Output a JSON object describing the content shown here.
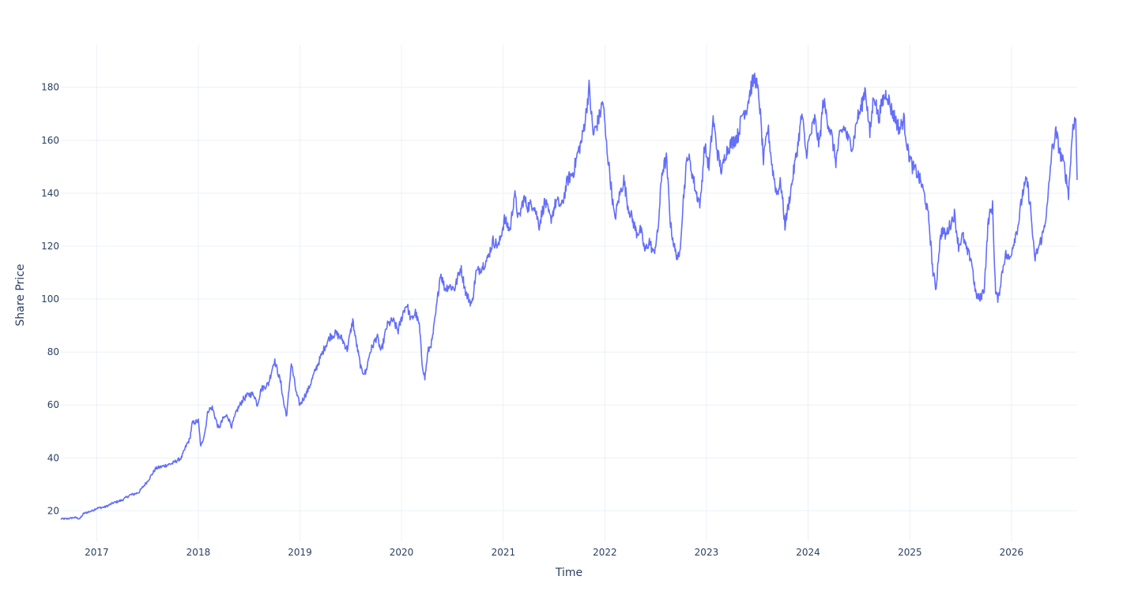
{
  "chart_data": {
    "type": "line",
    "title": "",
    "xlabel": "Time",
    "ylabel": "Share Price",
    "x_tick_labels": [
      "2017",
      "2018",
      "2019",
      "2020",
      "2021",
      "2022",
      "2023",
      "2024",
      "2025",
      "2026"
    ],
    "y_ticks": [
      20,
      40,
      60,
      80,
      100,
      120,
      140,
      160,
      180
    ],
    "xlim": [
      "2016-08-25",
      "2026-08-25"
    ],
    "ylim": [
      8.5,
      196
    ],
    "grid": true,
    "legend": false,
    "line_color": "#636efa",
    "series": [
      {
        "x": [
          "2016-08-25",
          "2016-09-15",
          "2016-10-15",
          "2016-11-01",
          "2016-11-15",
          "2016-12-15",
          "2017-01-01",
          "2017-02-01",
          "2017-03-01",
          "2017-04-01",
          "2017-05-01",
          "2017-05-20",
          "2017-06-01",
          "2017-07-01",
          "2017-08-01",
          "2017-09-01",
          "2017-10-01",
          "2017-11-01",
          "2017-11-20",
          "2017-12-01",
          "2017-12-10",
          "2018-01-01",
          "2018-01-10",
          "2018-01-25",
          "2018-02-05",
          "2018-02-20",
          "2018-03-15",
          "2018-04-01",
          "2018-04-15",
          "2018-05-01",
          "2018-05-20",
          "2018-06-10",
          "2018-07-01",
          "2018-07-20",
          "2018-08-01",
          "2018-08-15",
          "2018-09-10",
          "2018-10-01",
          "2018-10-15",
          "2018-10-25",
          "2018-11-05",
          "2018-11-15",
          "2018-12-01",
          "2018-12-20",
          "2019-01-01",
          "2019-02-01",
          "2019-03-01",
          "2019-04-01",
          "2019-04-20",
          "2019-05-10",
          "2019-06-01",
          "2019-06-20",
          "2019-07-10",
          "2019-07-20",
          "2019-08-10",
          "2019-08-25",
          "2019-09-10",
          "2019-10-05",
          "2019-10-20",
          "2019-11-10",
          "2019-12-01",
          "2019-12-20",
          "2020-01-10",
          "2020-01-20",
          "2020-02-05",
          "2020-02-20",
          "2020-03-05",
          "2020-03-15",
          "2020-03-25",
          "2020-04-05",
          "2020-04-20",
          "2020-05-05",
          "2020-05-20",
          "2020-06-05",
          "2020-06-20",
          "2020-07-10",
          "2020-08-01",
          "2020-08-20",
          "2020-09-10",
          "2020-09-25",
          "2020-10-15",
          "2020-11-05",
          "2020-11-25",
          "2020-12-15",
          "2021-01-05",
          "2021-01-25",
          "2021-02-10",
          "2021-02-25",
          "2021-03-15",
          "2021-03-30",
          "2021-04-20",
          "2021-05-10",
          "2021-05-30",
          "2021-06-20",
          "2021-07-10",
          "2021-07-30",
          "2021-08-20",
          "2021-09-10",
          "2021-09-25",
          "2021-10-10",
          "2021-10-25",
          "2021-11-05",
          "2021-11-20",
          "2021-12-10",
          "2021-12-25",
          "2022-01-05",
          "2022-01-20",
          "2022-02-05",
          "2022-02-20",
          "2022-03-10",
          "2022-03-25",
          "2022-04-10",
          "2022-04-25",
          "2022-05-10",
          "2022-05-25",
          "2022-06-10",
          "2022-06-25",
          "2022-07-10",
          "2022-07-25",
          "2022-08-10",
          "2022-08-25",
          "2022-09-10",
          "2022-09-25",
          "2022-10-10",
          "2022-10-25",
          "2022-11-10",
          "2022-11-25",
          "2022-12-10",
          "2022-12-25",
          "2023-01-10",
          "2023-01-25",
          "2023-02-10",
          "2023-02-25",
          "2023-03-10",
          "2023-03-25",
          "2023-04-10",
          "2023-04-25",
          "2023-05-10",
          "2023-05-25",
          "2023-06-10",
          "2023-06-25",
          "2023-07-10",
          "2023-07-25",
          "2023-08-10",
          "2023-08-25",
          "2023-09-10",
          "2023-09-25",
          "2023-10-10",
          "2023-10-25",
          "2023-11-10",
          "2023-11-25",
          "2023-12-10",
          "2023-12-25",
          "2024-01-10",
          "2024-01-25",
          "2024-02-10",
          "2024-02-25",
          "2024-03-10",
          "2024-03-25",
          "2024-04-10",
          "2024-04-25",
          "2024-05-10",
          "2024-05-25",
          "2024-06-10",
          "2024-06-25",
          "2024-07-10",
          "2024-07-25",
          "2024-08-10",
          "2024-08-25",
          "2024-09-10",
          "2024-09-25",
          "2024-10-10",
          "2024-10-25",
          "2024-11-10",
          "2024-11-25",
          "2024-12-10",
          "2024-12-25",
          "2025-01-10",
          "2025-01-25",
          "2025-02-10",
          "2025-02-25",
          "2025-03-10",
          "2025-03-25",
          "2025-04-05",
          "2025-04-15",
          "2025-04-25",
          "2025-05-10",
          "2025-05-25",
          "2025-06-10",
          "2025-06-25",
          "2025-07-10",
          "2025-07-25",
          "2025-08-10",
          "2025-08-25",
          "2025-09-10",
          "2025-09-25",
          "2025-10-10",
          "2025-10-25",
          "2025-11-05",
          "2025-11-15",
          "2025-11-25",
          "2025-12-10",
          "2025-12-25",
          "2026-01-10",
          "2026-01-25",
          "2026-02-10",
          "2026-02-25",
          "2026-03-10",
          "2026-03-25",
          "2026-04-10",
          "2026-04-25",
          "2026-05-10",
          "2026-05-25",
          "2026-06-10",
          "2026-06-25",
          "2026-07-10",
          "2026-07-25",
          "2026-08-10",
          "2026-08-20",
          "2026-08-25"
        ],
        "y": [
          17,
          17,
          17.5,
          17,
          19,
          20,
          21,
          21.5,
          23,
          24,
          26,
          26.5,
          27,
          31,
          36,
          37,
          38,
          40,
          45,
          47,
          53,
          54,
          44,
          50,
          58,
          59,
          51,
          55,
          56,
          52,
          58,
          62,
          64,
          64,
          60,
          66,
          68,
          77,
          72,
          68,
          60,
          56,
          76,
          64,
          60,
          66,
          74,
          82,
          86,
          87,
          85,
          81,
          92,
          85,
          73,
          72,
          80,
          86,
          80,
          90,
          92,
          88,
          96,
          98,
          92,
          95,
          90,
          76,
          70,
          80,
          84,
          96,
          110,
          104,
          105,
          104,
          112,
          102,
          98,
          110,
          112,
          115,
          122,
          120,
          130,
          126,
          140,
          130,
          138,
          135,
          136,
          128,
          137,
          130,
          137,
          135,
          145,
          148,
          155,
          160,
          170,
          180,
          162,
          168,
          175,
          160,
          146,
          130,
          138,
          145,
          135,
          130,
          125,
          126,
          118,
          122,
          117,
          125,
          148,
          153,
          128,
          118,
          115,
          138,
          155,
          148,
          140,
          136,
          158,
          150,
          168,
          155,
          148,
          155,
          158,
          160,
          162,
          170,
          172,
          180,
          184,
          175,
          152,
          165,
          150,
          140,
          144,
          128,
          137,
          148,
          158,
          170,
          155,
          162,
          168,
          158,
          175,
          168,
          162,
          152,
          162,
          165,
          160,
          158,
          168,
          172,
          180,
          162,
          178,
          168,
          175,
          178,
          172,
          168,
          164,
          168,
          156,
          150,
          148,
          144,
          138,
          130,
          110,
          104,
          118,
          126,
          124,
          128,
          132,
          120,
          124,
          118,
          115,
          102,
          100,
          104,
          130,
          135,
          102,
          100,
          108,
          117,
          115,
          122,
          128,
          140,
          145,
          135,
          115,
          120,
          125,
          135,
          155,
          163,
          155,
          150,
          140,
          166,
          168,
          145
        ]
      }
    ]
  }
}
